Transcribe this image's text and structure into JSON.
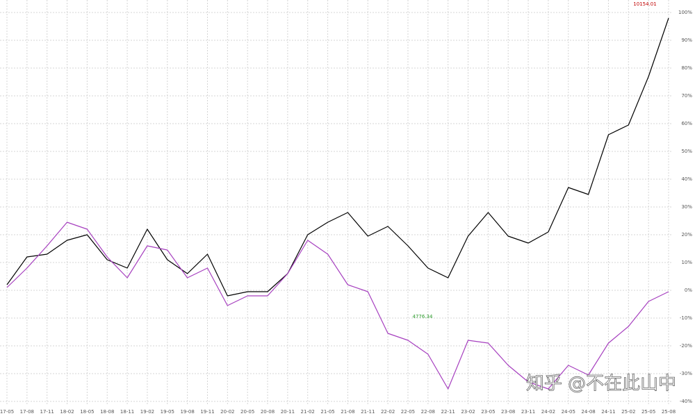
{
  "chart_data": {
    "type": "line",
    "categories": [
      "17-05",
      "17-08",
      "17-11",
      "18-02",
      "18-05",
      "18-08",
      "18-11",
      "19-02",
      "19-05",
      "19-08",
      "19-11",
      "20-02",
      "20-05",
      "20-08",
      "20-11",
      "21-02",
      "21-05",
      "21-08",
      "21-11",
      "22-02",
      "22-05",
      "22-08",
      "22-11",
      "23-02",
      "23-05",
      "23-08",
      "23-11",
      "24-02",
      "24-05",
      "24-08",
      "24-11",
      "25-02",
      "25-05",
      "25-08"
    ],
    "series": [
      {
        "color": "#000000",
        "values": [
          2,
          12,
          13,
          18,
          20,
          11,
          8,
          22,
          11,
          6,
          13,
          -2,
          -0.5,
          -0.5,
          6,
          20,
          24.5,
          28,
          19.5,
          23,
          16,
          8,
          4.5,
          19.5,
          28,
          19.5,
          17,
          21,
          37,
          34.5,
          56,
          59.5,
          77,
          98
        ]
      },
      {
        "color": "#a63fbf",
        "values": [
          1,
          8,
          16,
          24.5,
          22,
          12,
          4.5,
          16,
          14.5,
          4.5,
          8,
          -5.5,
          -2,
          -2,
          6,
          18,
          13,
          2,
          -0.5,
          -15.5,
          -18,
          -23,
          -35.5,
          -18,
          -19,
          -27,
          -33,
          -35.5,
          -27,
          -30.5,
          -19,
          -13,
          -4,
          -0.5
        ]
      }
    ],
    "ylim": [
      -40,
      100
    ],
    "yticks": [
      {
        "value": 100,
        "label": "100%"
      },
      {
        "value": 90,
        "label": "90%"
      },
      {
        "value": 80,
        "label": "80%"
      },
      {
        "value": 70,
        "label": "70%"
      },
      {
        "value": 60,
        "label": "60%"
      },
      {
        "value": 50,
        "label": "50%"
      },
      {
        "value": 40,
        "label": "40%"
      },
      {
        "value": 30,
        "label": "30%"
      },
      {
        "value": 20,
        "label": "20%"
      },
      {
        "value": 10,
        "label": "10%"
      },
      {
        "value": 0,
        "label": "0%"
      },
      {
        "value": -10,
        "label": "-10%"
      },
      {
        "value": -20,
        "label": "-20%"
      },
      {
        "value": -30,
        "label": "-30%"
      },
      {
        "value": -40,
        "label": "-40%"
      }
    ],
    "grid": true,
    "annotations": [
      "10154.01",
      "4776.34"
    ],
    "watermark": "知乎 @不在此山中"
  }
}
